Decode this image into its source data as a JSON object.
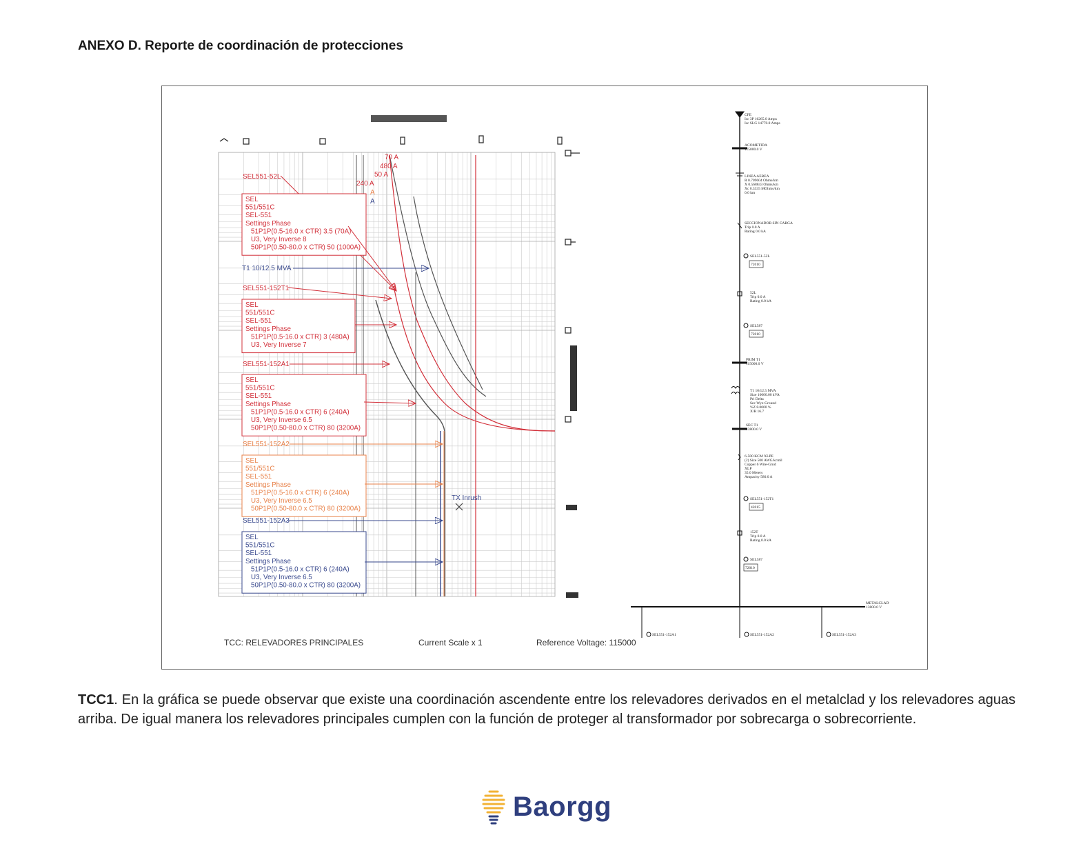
{
  "heading": "ANEXO D. Reporte de coordinación de protecciones",
  "tcc": {
    "current_labels": [
      "70 A",
      "480 A",
      "240 A",
      "A",
      "A",
      "50 A"
    ],
    "blocks": [
      {
        "tag": "SEL551-52L",
        "color": "#d2303a",
        "lines": [
          "SEL",
          "551/551C",
          "SEL-551",
          "Settings Phase",
          "51P1P(0.5-16.0 x CTR) 3.5 (70A)",
          "U3, Very Inverse 8",
          "50P1P(0.50-80.0 x CTR) 50 (1000A)"
        ]
      },
      {
        "tag": "SEL551-152T1",
        "color": "#d2303a",
        "lines": [
          "SEL",
          "551/551C",
          "SEL-551",
          "Settings Phase",
          "51P1P(0.5-16.0 x CTR) 3 (480A)",
          "U3, Very Inverse 7"
        ]
      },
      {
        "tag": "SEL551-152A1",
        "color": "#d2303a",
        "lines": [
          "SEL",
          "551/551C",
          "SEL-551",
          "Settings Phase",
          "51P1P(0.5-16.0 x CTR) 6 (240A)",
          "U3, Very Inverse 6.5",
          "50P1P(0.50-80.0 x CTR) 80 (3200A)"
        ]
      },
      {
        "tag": "SEL551-152A2",
        "color": "#e8824a",
        "lines": [
          "SEL",
          "551/551C",
          "SEL-551",
          "Settings Phase",
          "51P1P(0.5-16.0 x CTR) 6 (240A)",
          "U3, Very Inverse 6.5",
          "50P1P(0.50-80.0 x CTR) 80 (3200A)"
        ]
      },
      {
        "tag": "SEL551-152A3",
        "color": "#3a4a8e",
        "lines": [
          "SEL",
          "551/551C",
          "SEL-551",
          "Settings Phase",
          "51P1P(0.5-16.0 x CTR) 6 (240A)",
          "U3, Very Inverse 6.5",
          "50P1P(0.50-80.0 x CTR) 80 (3200A)"
        ]
      }
    ],
    "transformer_label": "T1 10/12.5 MVA",
    "inrush_label": "TX Inrush",
    "footer_left": "TCC:  RELEVADORES PRINCIPALES",
    "footer_mid": "Current Scale  x 1",
    "footer_right": "Reference Voltage: 115000"
  },
  "one_line": {
    "source": [
      "CFE",
      "Isc 3P 16265.0 Amps",
      "Isc SLG 14770.0 Amps"
    ],
    "acometida": [
      "ACOMETIDA",
      "115000.0 V"
    ],
    "line": [
      "LINEA AEREA",
      "R 0.709604 Ohms/km",
      "X 0.568843 Ohms/km",
      "Xc 0.3335 MOhms/km",
      "0.0 km"
    ],
    "switch": [
      "SECCIONADOR SIN CARGA",
      "Trip 0.0 A",
      "Rating 0.0 kA"
    ],
    "relay1": "SEL551-52L",
    "relay1_box": "72010",
    "breaker1": [
      "52L",
      "Trip 0.0 A",
      "Rating 0.0 kA"
    ],
    "relay2": "SEL587",
    "relay2_box": "72010",
    "prim": [
      "PRIM T1",
      "115000.0 V"
    ],
    "xfmr": [
      "T1 10/12.5 MVA",
      "Size 10000.00 kVA",
      "Pri Delta",
      "Sec Wye-Ground",
      "%Z 8.0000 %",
      "X/R 16.7"
    ],
    "sec": [
      "SEC T1",
      "13800.0 V"
    ],
    "cable": [
      "6-500 KCM XLPE",
      "(2) Size 500 AWG/kcmil",
      "Copper 6 Wire-Grnd",
      "XLP",
      "35.0 Meters",
      "Ampacity 580.0 A"
    ],
    "relay3": "SEL551-152T1",
    "relay3_box": "42015",
    "breaker2": [
      "152T",
      "Trip 0.0 A",
      "Rating 0.0 kA"
    ],
    "relay4": "SEL587",
    "relay4_box": "72010",
    "bus": [
      "METALCLAD",
      "13800.0 V"
    ],
    "feeders": [
      "SEL551-152A1",
      "SEL551-152A2",
      "SEL551-152A3"
    ]
  },
  "paragraph_lead": "TCC1",
  "paragraph": ". En la gráfica se puede observar que existe una coordinación ascendente entre los relevadores derivados en el metalclad y los relevadores aguas arriba. De igual manera los relevadores principales cumplen con la función de proteger al transformador por sobrecarga o sobrecorriente.",
  "logo": "Baorgg"
}
